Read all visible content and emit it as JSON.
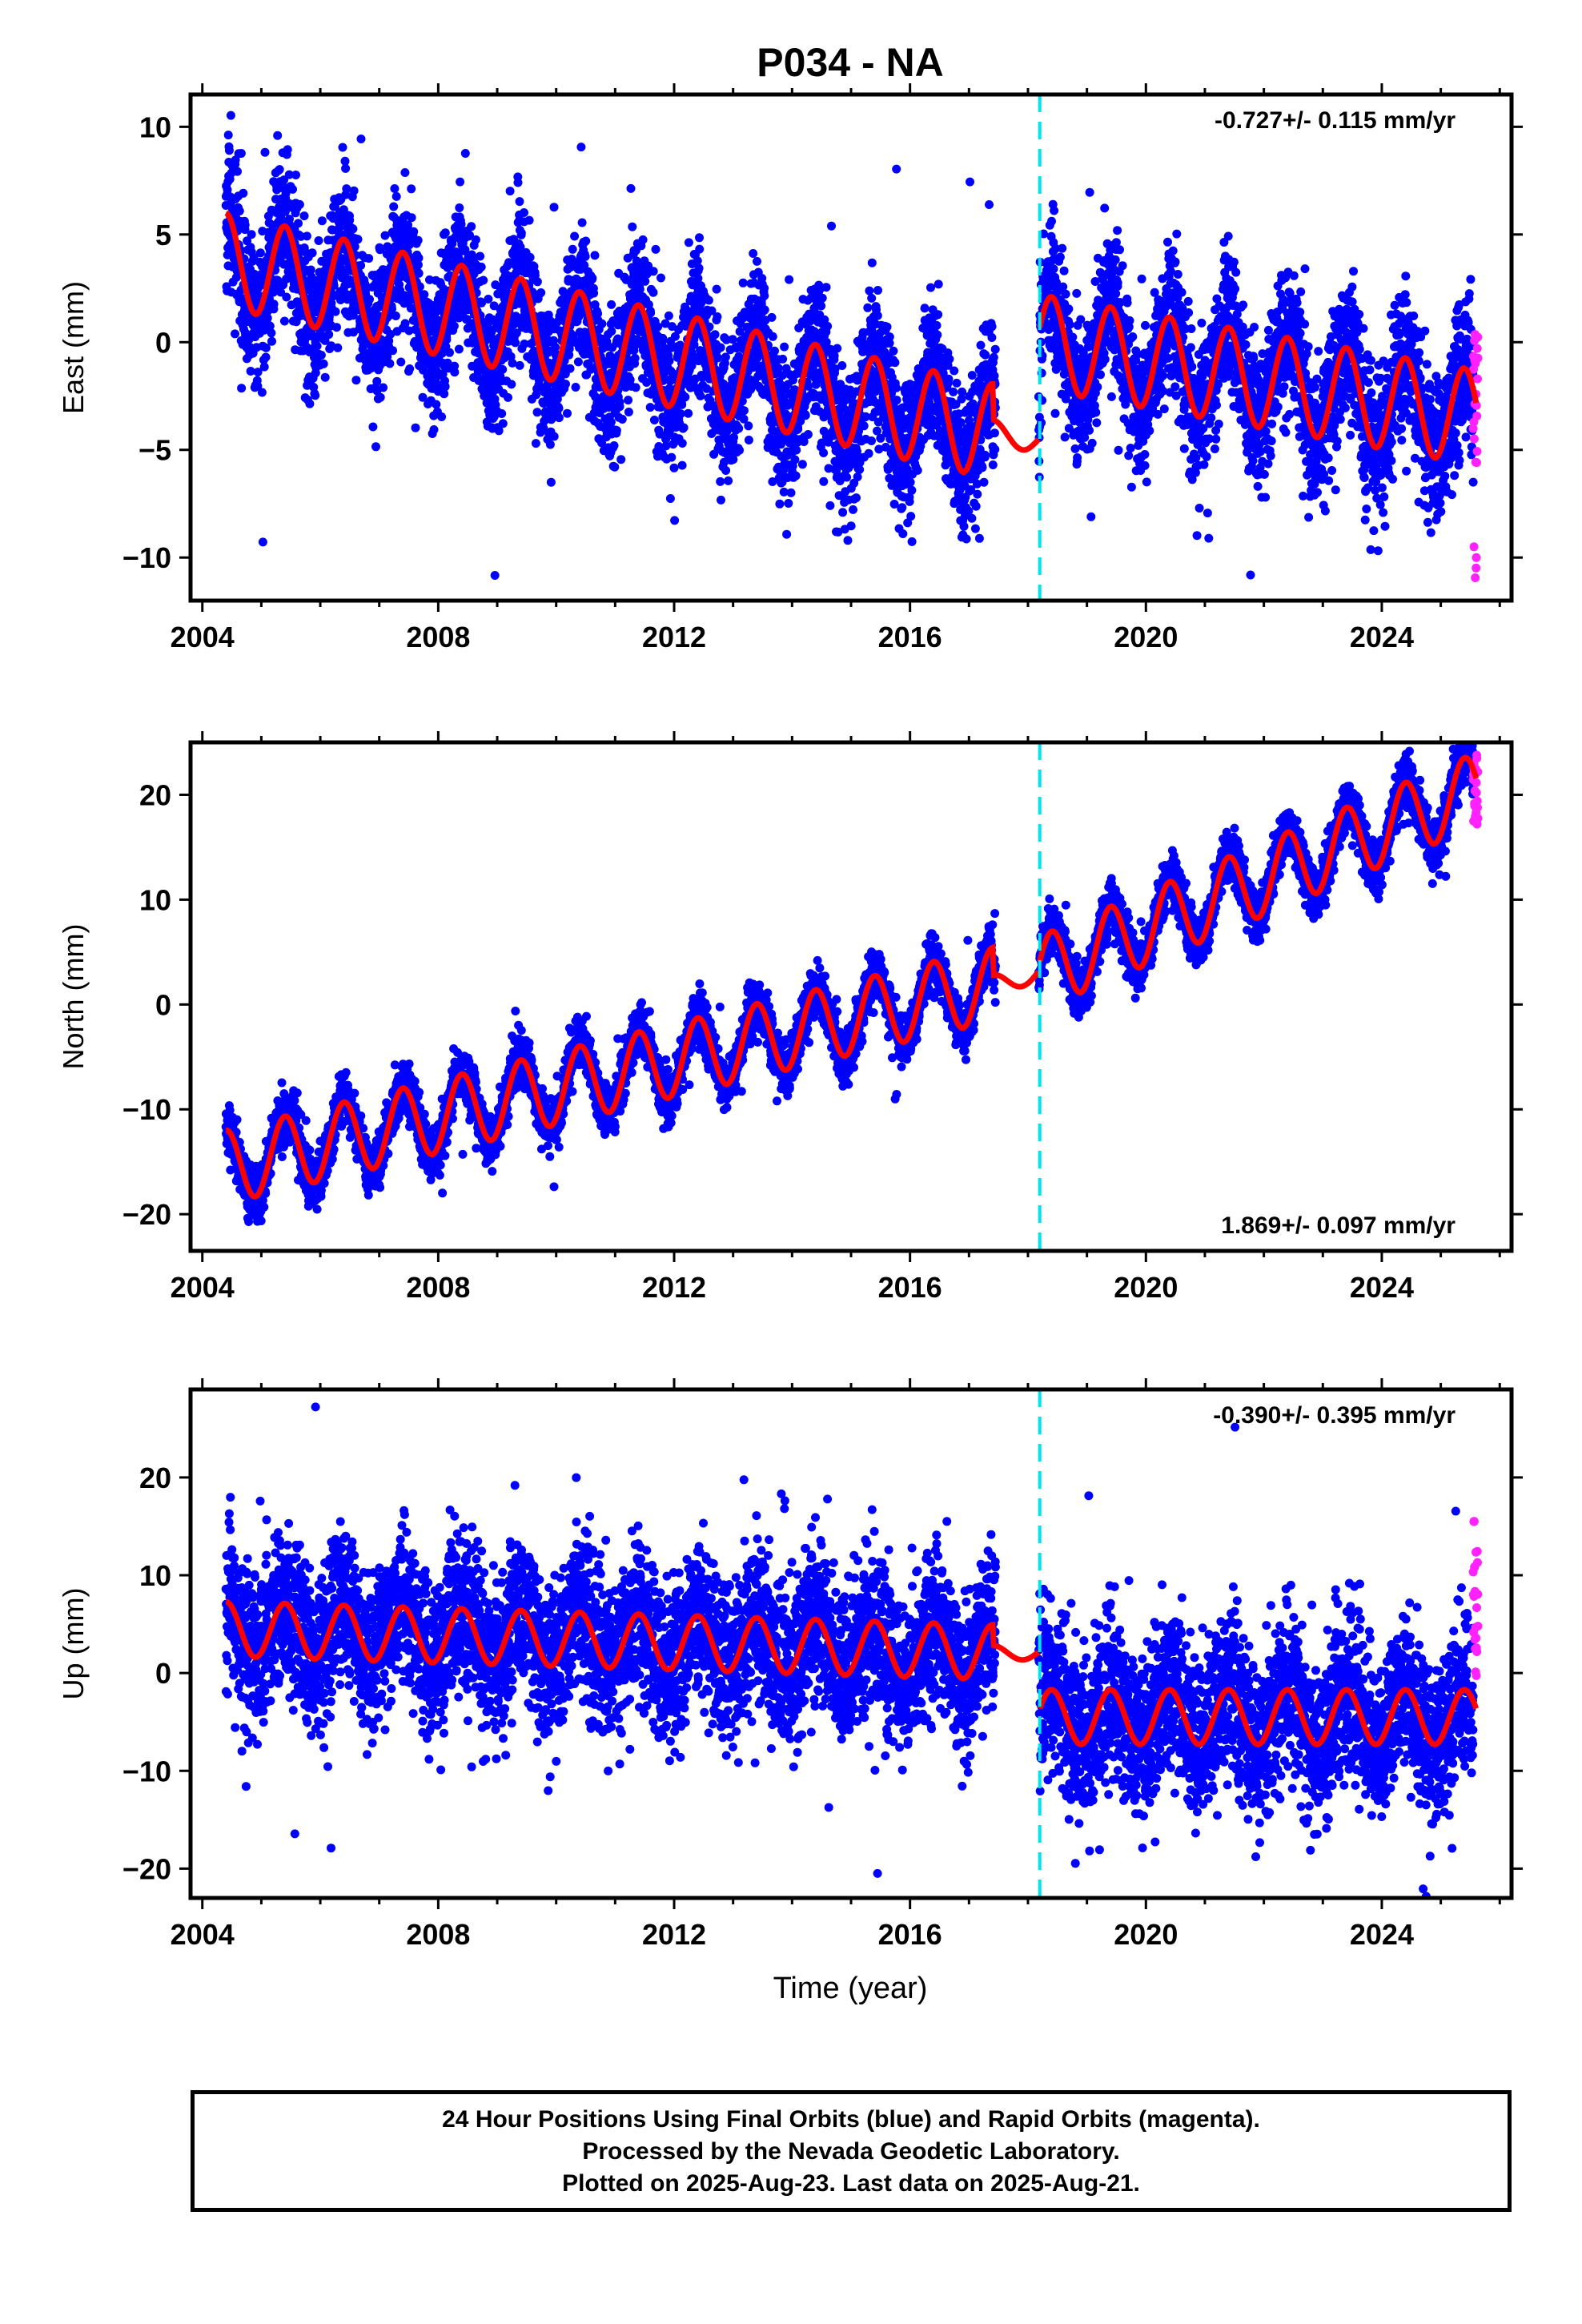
{
  "figure": {
    "title": "P034 - NA",
    "xlabel": "Time (year)",
    "notes": [
      "24 Hour Positions Using Final Orbits (blue) and Rapid Orbits (magenta).",
      "Processed by the Nevada Geodetic Laboratory.",
      "Plotted on 2025-Aug-23. Last data on 2025-Aug-21."
    ]
  },
  "colors": {
    "final_orbits": "#0000ff",
    "rapid_orbits": "#ff22ff",
    "model_fit": "#ff0000",
    "equipment_change": "#00e5ee",
    "axes": "#000000"
  },
  "chart_data": [
    {
      "type": "scatter",
      "component": "East",
      "ylabel": "East (mm)",
      "rate_label": "-0.727+/- 0.115 mm/yr",
      "rate_position": "top-right",
      "xlim": [
        2003.8,
        2026.2
      ],
      "ylim": [
        -12,
        11.5
      ],
      "xticks": [
        2004,
        2008,
        2012,
        2016,
        2020,
        2024
      ],
      "yticks": [
        -10,
        -5,
        0,
        5,
        10
      ],
      "grid": false,
      "equipment_change_year": 2018.2,
      "model": {
        "trend_mm_per_yr": -0.727,
        "offset_at_change_mm": 5.0,
        "annual_amplitude_mm": 2.2,
        "anchor_points": [
          [
            2004.4,
            3.8
          ],
          [
            2018.15,
            -4.6
          ],
          [
            2018.2,
            0.0
          ],
          [
            2025.6,
            -3.5
          ]
        ]
      },
      "series": [
        {
          "name": "Final Orbits (blue)",
          "x_range": [
            2004.4,
            2025.55
          ],
          "scatter_mm": 1.6
        },
        {
          "name": "Rapid Orbits (magenta)",
          "x_range": [
            2025.55,
            2025.63
          ],
          "y_range": [
            -11.8,
            0.7
          ]
        }
      ]
    },
    {
      "type": "scatter",
      "component": "North",
      "ylabel": "North (mm)",
      "rate_label": "1.869+/- 0.097 mm/yr",
      "rate_position": "bottom-right",
      "xlim": [
        2003.8,
        2026.2
      ],
      "ylim": [
        -23.5,
        25
      ],
      "xticks": [
        2004,
        2008,
        2012,
        2016,
        2020,
        2024
      ],
      "yticks": [
        -20,
        -10,
        0,
        10,
        20
      ],
      "grid": false,
      "equipment_change_year": 2018.2,
      "model": {
        "trend_mm_per_yr": 1.869,
        "offset_at_change_mm": 0.0,
        "annual_amplitude_mm": 3.5,
        "anchor_points": [
          [
            2004.4,
            -15.5
          ],
          [
            2018.2,
            3.0
          ],
          [
            2025.6,
            20.5
          ]
        ]
      },
      "series": [
        {
          "name": "Final Orbits (blue)",
          "x_range": [
            2004.4,
            2025.55
          ],
          "scatter_mm": 1.2
        },
        {
          "name": "Rapid Orbits (magenta)",
          "x_range": [
            2025.55,
            2025.63
          ],
          "y_range": [
            17,
            24
          ]
        }
      ]
    },
    {
      "type": "scatter",
      "component": "Up",
      "ylabel": "Up (mm)",
      "rate_label": "-0.390+/- 0.395 mm/yr",
      "rate_position": "top-right",
      "xlim": [
        2003.8,
        2026.2
      ],
      "ylim": [
        -23,
        29
      ],
      "xticks": [
        2004,
        2008,
        2012,
        2016,
        2020,
        2024
      ],
      "yticks": [
        -20,
        -10,
        0,
        10,
        20
      ],
      "grid": false,
      "equipment_change_year": 2018.2,
      "model": {
        "trend_mm_per_yr": -0.39,
        "offset_at_change_mm": 6.5,
        "annual_amplitude_mm": 2.8,
        "anchor_points": [
          [
            2004.4,
            4.5
          ],
          [
            2018.15,
            2.0
          ],
          [
            2018.2,
            -4.5
          ],
          [
            2025.6,
            -4.5
          ]
        ]
      },
      "series": [
        {
          "name": "Final Orbits (blue)",
          "x_range": [
            2004.4,
            2025.55
          ],
          "scatter_mm": 4.0
        },
        {
          "name": "Rapid Orbits (magenta)",
          "x_range": [
            2025.55,
            2025.63
          ],
          "y_range": [
            -1,
            16.5
          ]
        }
      ]
    }
  ]
}
